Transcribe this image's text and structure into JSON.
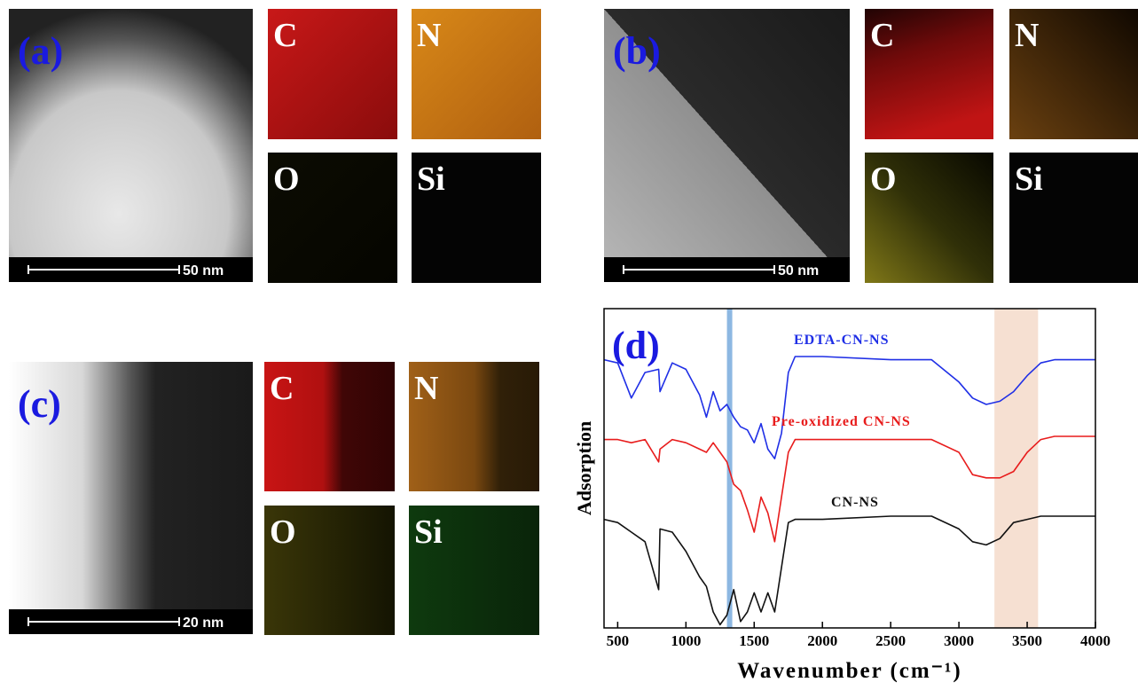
{
  "panels": [
    {
      "label": "(a)",
      "scale": "50 nm",
      "maps": [
        "C",
        "N",
        "O",
        "Si"
      ]
    },
    {
      "label": "(b)",
      "scale": "50 nm",
      "maps": [
        "C",
        "N",
        "O",
        "Si"
      ]
    },
    {
      "label": "(c)",
      "scale": "20 nm",
      "maps": [
        "C",
        "N",
        "O",
        "Si"
      ]
    }
  ],
  "chart_data": {
    "type": "line",
    "label": "(d)",
    "xlabel": "Wavenumber (cm⁻¹)",
    "ylabel": "Adsorption",
    "xlim": [
      400,
      4000
    ],
    "xticks": [
      500,
      1000,
      1500,
      2000,
      2500,
      3000,
      3500,
      4000
    ],
    "ylim": [
      0,
      10
    ],
    "vline": {
      "x": 1320,
      "color": "#8db8e2"
    },
    "vspan": {
      "x": [
        3260,
        3580
      ],
      "color": "#f6e0d2"
    },
    "x": [
      400,
      500,
      600,
      700,
      800,
      810,
      900,
      1000,
      1100,
      1150,
      1200,
      1250,
      1300,
      1350,
      1400,
      1450,
      1500,
      1550,
      1600,
      1650,
      1700,
      1750,
      1800,
      2000,
      2500,
      2800,
      3000,
      3100,
      3200,
      3300,
      3400,
      3500,
      3600,
      3700,
      4000
    ],
    "series": [
      {
        "name": "EDTA-CN-NS",
        "color": "#1f2fe6",
        "values": [
          8.4,
          8.3,
          7.2,
          8.0,
          8.1,
          7.4,
          8.3,
          8.1,
          7.3,
          6.6,
          7.4,
          6.8,
          7.0,
          6.6,
          6.3,
          6.2,
          5.8,
          6.4,
          5.6,
          5.3,
          6.1,
          8.0,
          8.5,
          8.5,
          8.4,
          8.4,
          7.7,
          7.2,
          7.0,
          7.1,
          7.4,
          7.9,
          8.3,
          8.4,
          8.4
        ]
      },
      {
        "name": "Pre-oxidized CN-NS",
        "color": "#e81c1c",
        "values": [
          5.9,
          5.9,
          5.8,
          5.9,
          5.2,
          5.6,
          5.9,
          5.8,
          5.6,
          5.5,
          5.8,
          5.5,
          5.2,
          4.5,
          4.3,
          3.7,
          3.0,
          4.1,
          3.6,
          2.7,
          4.1,
          5.5,
          5.9,
          5.9,
          5.9,
          5.9,
          5.5,
          4.8,
          4.7,
          4.7,
          4.9,
          5.5,
          5.9,
          6.0,
          6.0
        ]
      },
      {
        "name": "CN-NS",
        "color": "#111111",
        "values": [
          3.4,
          3.3,
          3.0,
          2.7,
          1.2,
          3.1,
          3.0,
          2.4,
          1.6,
          1.3,
          0.5,
          0.1,
          0.4,
          1.2,
          0.2,
          0.5,
          1.1,
          0.5,
          1.1,
          0.5,
          1.9,
          3.3,
          3.4,
          3.4,
          3.5,
          3.5,
          3.1,
          2.7,
          2.6,
          2.8,
          3.3,
          3.4,
          3.5,
          3.5,
          3.5
        ]
      }
    ]
  }
}
